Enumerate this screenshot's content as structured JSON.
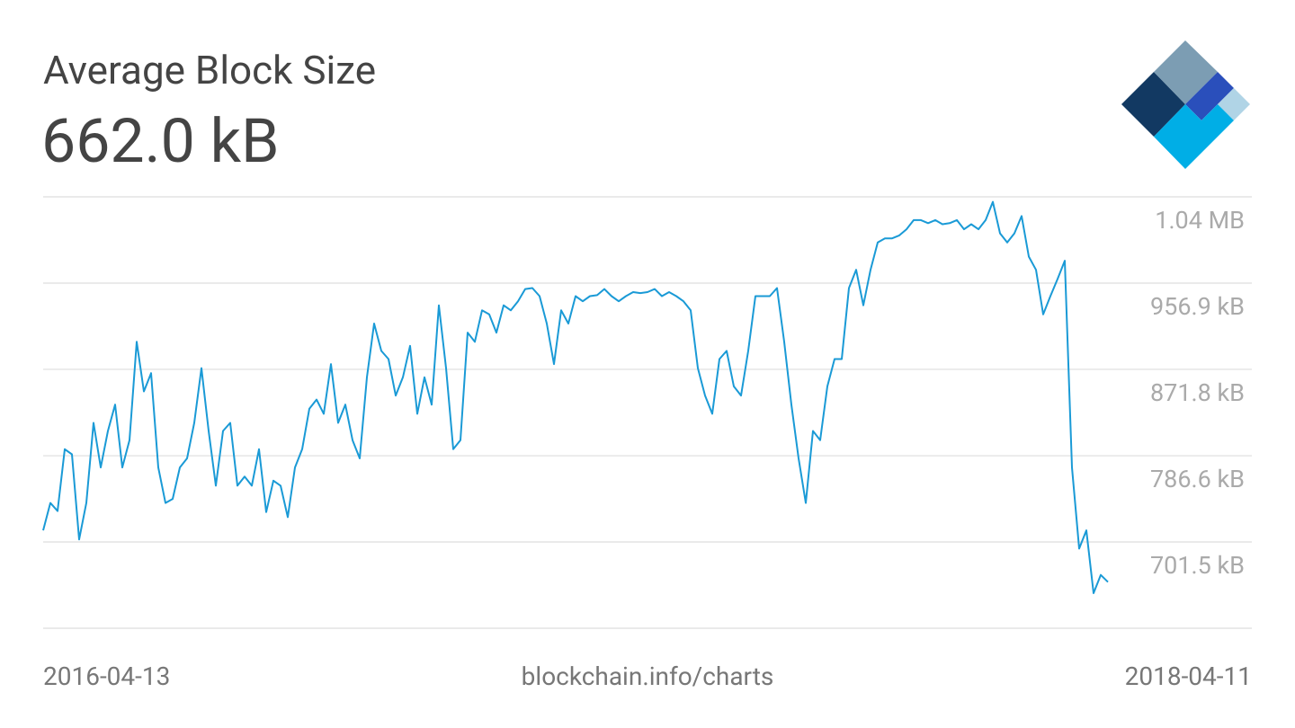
{
  "chart_data": {
    "type": "line",
    "title": "Average Block Size",
    "subtitle": "662.0 kB",
    "footer": "blockchain.info/charts",
    "categories": [
      "2016-04-13",
      null,
      null,
      null,
      null,
      null,
      null,
      null,
      null,
      null,
      null,
      null,
      null,
      null,
      null,
      null,
      null,
      null,
      null,
      null,
      null,
      null,
      null,
      null,
      null,
      null,
      null,
      null,
      null,
      null,
      null,
      null,
      null,
      null,
      null,
      null,
      null,
      null,
      null,
      null,
      null,
      null,
      null,
      null,
      null,
      null,
      null,
      null,
      null,
      null,
      null,
      null,
      null,
      null,
      null,
      null,
      null,
      null,
      null,
      null,
      null,
      null,
      null,
      null,
      null,
      null,
      null,
      null,
      null,
      null,
      null,
      null,
      null,
      null,
      null,
      null,
      null,
      null,
      null,
      null,
      null,
      null,
      null,
      null,
      null,
      null,
      null,
      null,
      null,
      null,
      null,
      null,
      null,
      null,
      null,
      null,
      null,
      null,
      null,
      null,
      null,
      null,
      null,
      null,
      null,
      null,
      null,
      null,
      null,
      null,
      null,
      null,
      null,
      null,
      null,
      null,
      null,
      null,
      null,
      null,
      null,
      null,
      null,
      null,
      null,
      null,
      null,
      null,
      null,
      null,
      null,
      null,
      null,
      null,
      null,
      null,
      null,
      null,
      null,
      null,
      null,
      null,
      null,
      null,
      null,
      null,
      null,
      null,
      null,
      null,
      null,
      null,
      null,
      null,
      null,
      null,
      null,
      null,
      null,
      null,
      null,
      null,
      null,
      null,
      null,
      null,
      null,
      null,
      "2018-04-11"
    ],
    "series": [
      {
        "name": "Average Block Size",
        "color": "#1a9ad6",
        "values": [
          713,
          740,
          732,
          793,
          788,
          704,
          740,
          819,
          775,
          811,
          837,
          775,
          802,
          899,
          850,
          868,
          775,
          740,
          744,
          775,
          784,
          819,
          873,
          811,
          757,
          811,
          819,
          757,
          766,
          757,
          793,
          731,
          762,
          757,
          726,
          775,
          793,
          833,
          842,
          828,
          877,
          819,
          837,
          802,
          784,
          864,
          917,
          890,
          882,
          846,
          864,
          895,
          828,
          864,
          837,
          935,
          873,
          793,
          802,
          908,
          899,
          930,
          926,
          908,
          935,
          930,
          939,
          951,
          952,
          944,
          917,
          877,
          930,
          917,
          944,
          939,
          944,
          945,
          951,
          944,
          939,
          944,
          948,
          947,
          948,
          951,
          944,
          948,
          944,
          939,
          930,
          873,
          846,
          828,
          882,
          890,
          855,
          846,
          890,
          944,
          944,
          944,
          952,
          899,
          837,
          784,
          740,
          811,
          802,
          855,
          882,
          882,
          952,
          970,
          935,
          970,
          997,
          1001,
          1001,
          1004,
          1010,
          1019,
          1019,
          1016,
          1019,
          1015,
          1016,
          1019,
          1010,
          1015,
          1010,
          1019,
          1037,
          1006,
          997,
          1006,
          1023,
          983,
          970,
          926,
          944,
          961,
          979,
          775,
          695,
          713,
          651,
          669,
          662,
          null,
          null,
          null,
          null,
          null,
          null,
          null,
          null,
          null,
          null,
          null,
          null,
          null,
          null,
          null,
          null,
          null,
          null,
          null,
          null
        ]
      }
    ],
    "ylim": [
      616.4,
      1042.0
    ],
    "yticks": [
      {
        "value": 701.5,
        "label": "701.5 kB"
      },
      {
        "value": 786.6,
        "label": "786.6 kB"
      },
      {
        "value": 871.8,
        "label": "871.8 kB"
      },
      {
        "value": 956.9,
        "label": "956.9 kB"
      },
      {
        "value": 1042.0,
        "label": "1.04 MB"
      }
    ],
    "grid": true
  }
}
